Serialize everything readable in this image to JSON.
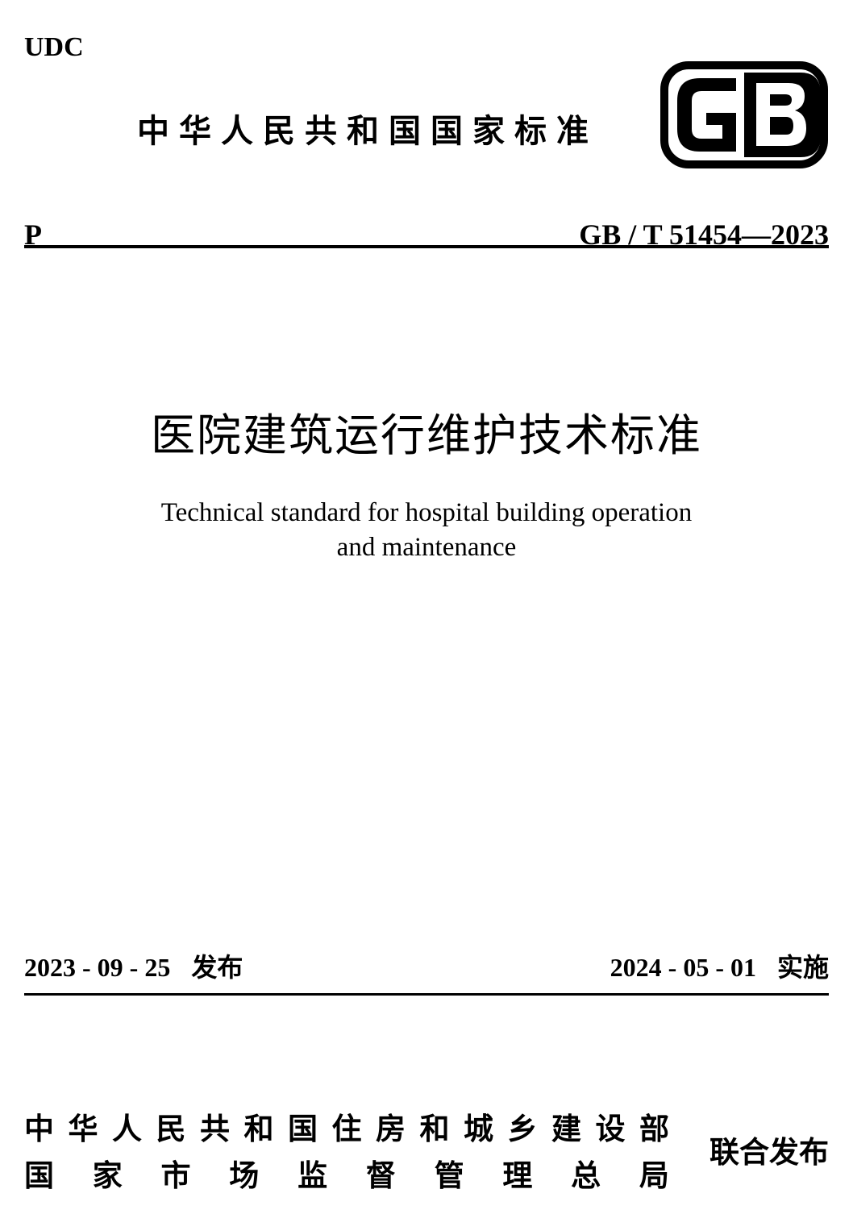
{
  "header": {
    "udc_label": "UDC",
    "national_standard_text": "中华人民共和国国家标准",
    "p_label": "P",
    "standard_number": "GB / T 51454—2023"
  },
  "logo": {
    "text_g": "G",
    "text_b": "B",
    "stroke_color": "#000000",
    "fill_color": "#000000"
  },
  "title": {
    "cn": "医院建筑运行维护技术标准",
    "en_line1": "Technical standard for hospital building operation",
    "en_line2": "and maintenance"
  },
  "dates": {
    "issue_date": "2023 - 09 - 25",
    "issue_label": "发布",
    "effective_date": "2024 - 05 - 01",
    "effective_label": "实施"
  },
  "publishers": {
    "line1": "中华人民共和国住房和城乡建设部",
    "line2": "国家市场监督管理总局",
    "joint_label": "联合发布"
  },
  "styles": {
    "background_color": "#ffffff",
    "text_color": "#000000",
    "divider_color": "#000000"
  }
}
